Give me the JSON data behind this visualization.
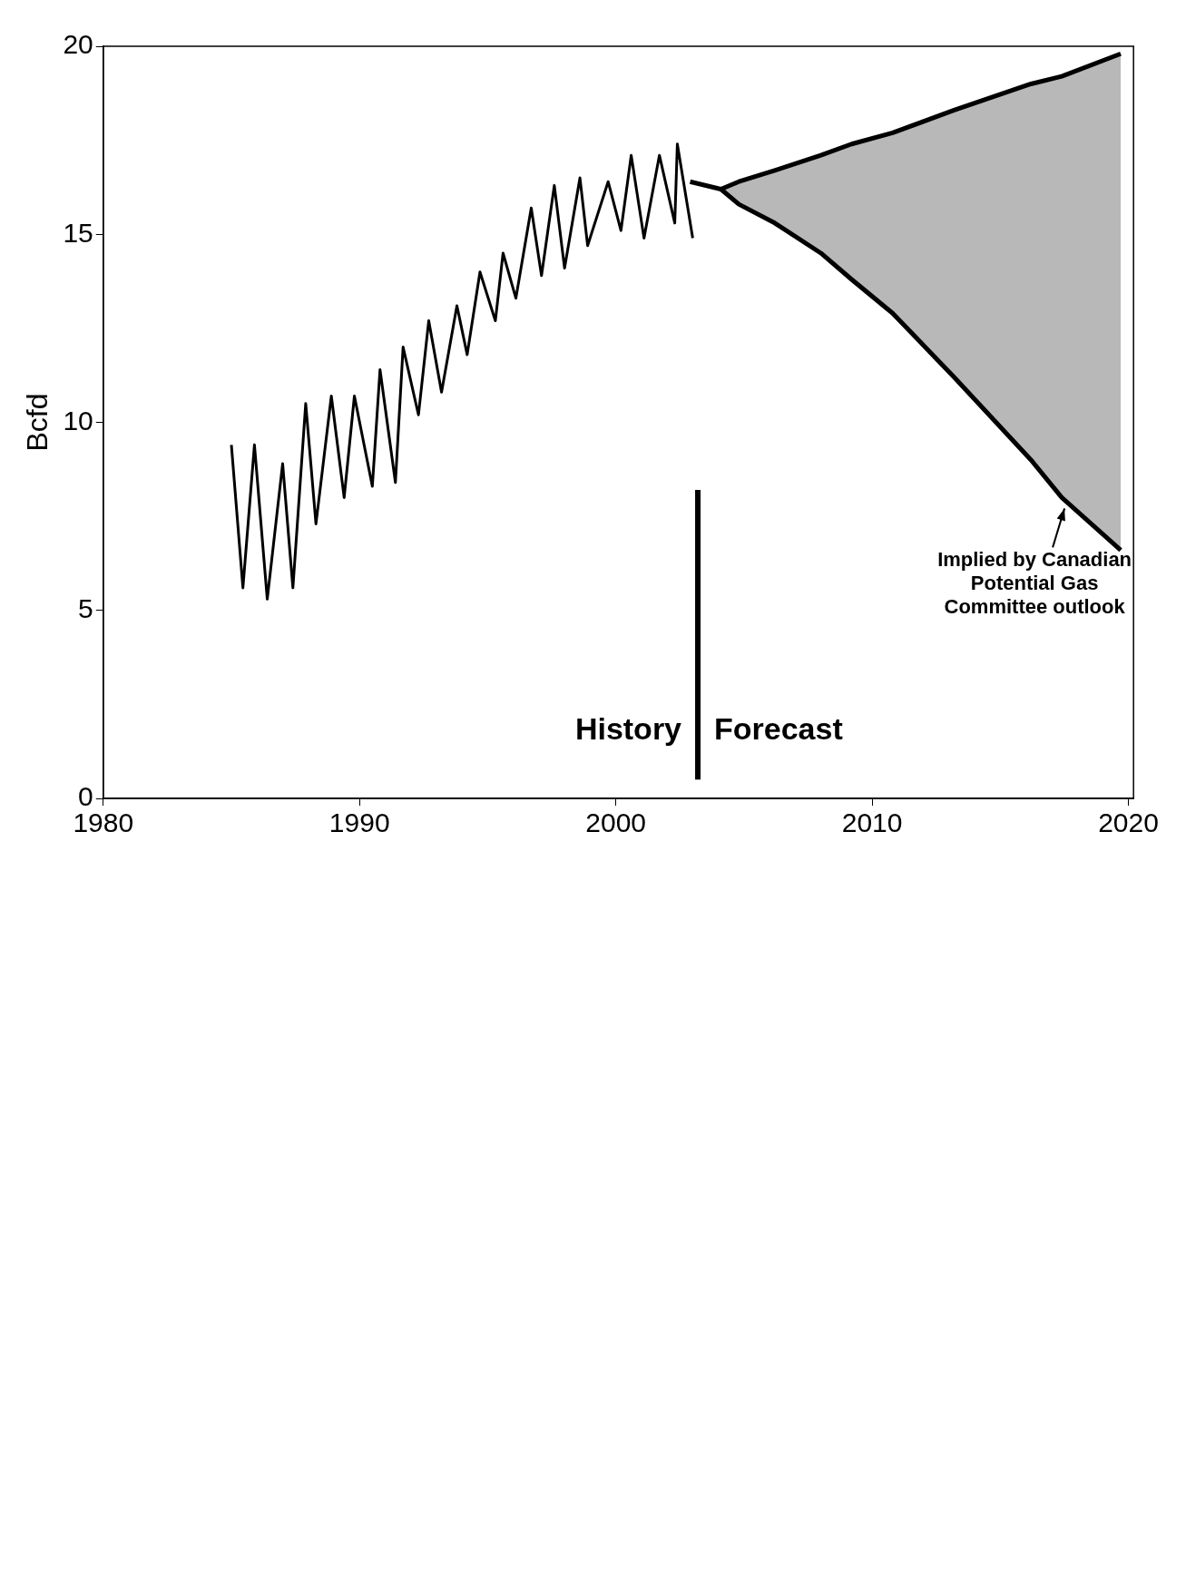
{
  "chart_data": {
    "type": "line",
    "ylabel": "Bcfd",
    "xlim": [
      1980,
      2020.2
    ],
    "xticks": [
      1980,
      1990,
      2000,
      2010,
      2020
    ],
    "ylim": [
      0,
      20
    ],
    "yticks": [
      0,
      5,
      10,
      15,
      20
    ],
    "grid": false,
    "legend": false,
    "marker": "none",
    "line_style": "solid",
    "series": [
      {
        "color": "#000000",
        "x": [
          1985.0,
          1985.45,
          1985.9,
          1986.4,
          1987.0,
          1987.4,
          1987.9,
          1988.3,
          1988.9,
          1989.4,
          1989.8,
          1990.5,
          1990.8,
          1991.4,
          1991.7,
          1992.3,
          1992.7,
          1993.2,
          1993.8,
          1994.2,
          1994.7,
          1995.3,
          1995.6,
          1996.1,
          1996.7,
          1997.1,
          1997.6,
          1998.0,
          1998.6,
          1998.9,
          1999.7,
          2000.2,
          2000.6,
          2001.1,
          2001.7,
          2002.3,
          2002.4,
          2003.0
        ],
        "values": [
          9.4,
          5.6,
          9.4,
          5.3,
          8.9,
          5.6,
          10.5,
          7.3,
          10.7,
          8.0,
          10.7,
          8.3,
          11.4,
          8.4,
          12.0,
          10.2,
          12.7,
          10.8,
          13.1,
          11.8,
          14.0,
          12.7,
          14.5,
          13.3,
          15.7,
          13.9,
          16.3,
          14.1,
          16.5,
          14.7,
          16.4,
          15.1,
          17.1,
          14.9,
          17.1,
          15.3,
          17.4,
          14.9
        ]
      },
      {
        "color": "#000000",
        "x": [
          2002.9,
          2004.1,
          2004.8,
          2006.2,
          2008.0,
          2009.2,
          2010.8,
          2013.2,
          2016.2,
          2017.4,
          2019.7
        ],
        "values": [
          16.4,
          16.2,
          16.4,
          16.7,
          17.1,
          17.4,
          17.7,
          18.3,
          19.0,
          19.2,
          19.8
        ]
      },
      {
        "color": "#000000",
        "x": [
          2004.1,
          2004.8,
          2006.2,
          2008.0,
          2009.2,
          2010.8,
          2013.2,
          2016.2,
          2017.4,
          2019.7
        ],
        "values": [
          16.2,
          15.8,
          15.3,
          14.5,
          13.8,
          12.9,
          11.2,
          9.0,
          8.0,
          6.6
        ],
        "upper": [
          16.2,
          16.4,
          16.7,
          17.1,
          17.4,
          17.7,
          18.3,
          19.0,
          19.2,
          19.8
        ],
        "lower": [
          16.2,
          15.8,
          15.3,
          14.5,
          13.8,
          12.9,
          11.2,
          9.0,
          8.0,
          6.6
        ]
      }
    ],
    "ref_lines": [
      {
        "axis": "x",
        "value": 2003.2,
        "color": "#000000"
      }
    ],
    "annotations": [
      "History",
      "Forecast",
      {
        "text": "Implied by Canadian Potential Gas Committee outlook",
        "x": 2017.4,
        "y": 8.0
      }
    ]
  }
}
